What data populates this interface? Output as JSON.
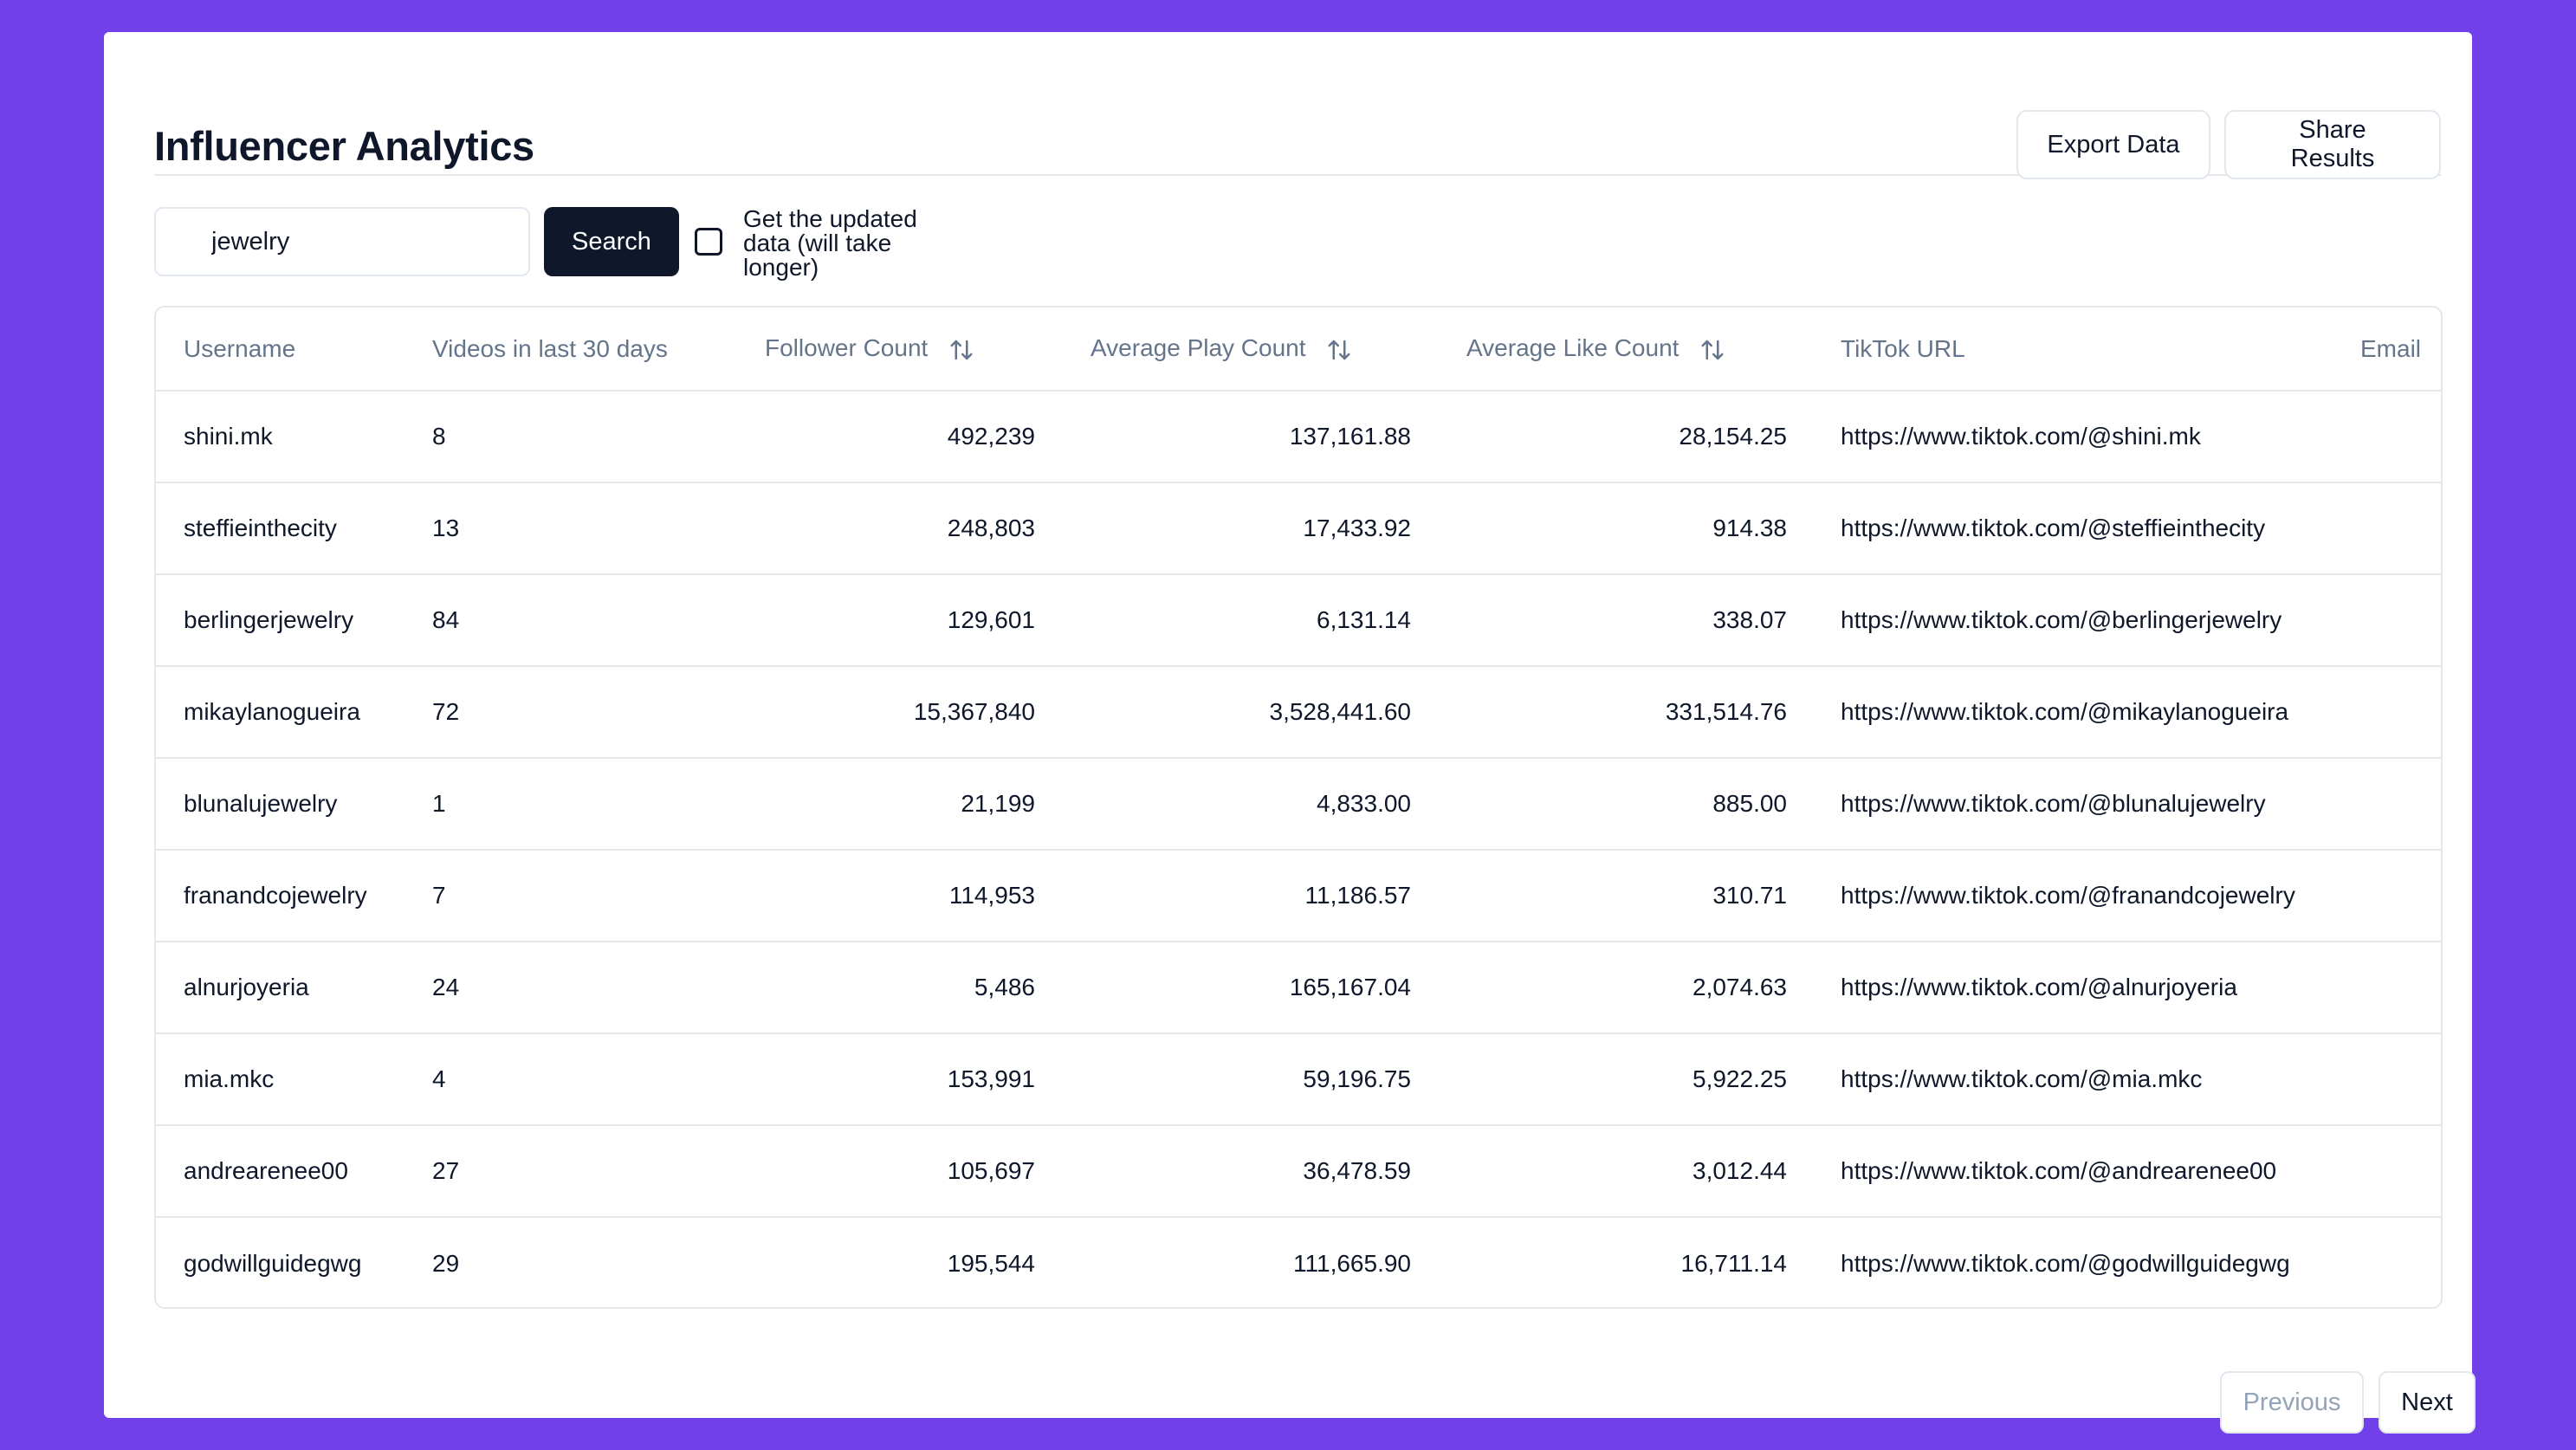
{
  "header": {
    "title": "Influencer Analytics",
    "export_label": "Export Data",
    "share_label": "Share Results"
  },
  "search": {
    "value": "jewelry",
    "button_label": "Search",
    "update_checkbox_checked": false,
    "update_label_line1": "Get the updated",
    "update_label_line2": "data (will take",
    "update_label_line3": "longer)"
  },
  "table": {
    "columns": {
      "username": "Username",
      "videos": "Videos in last 30 days",
      "followers": "Follower Count",
      "avg_play": "Average Play Count",
      "avg_like": "Average Like Count",
      "url": "TikTok URL",
      "email": "Email"
    },
    "rows": [
      {
        "username": "shini.mk",
        "videos": "8",
        "followers": "492,239",
        "avg_play": "137,161.88",
        "avg_like": "28,154.25",
        "url": "https://www.tiktok.com/@shini.mk",
        "email": ""
      },
      {
        "username": "steffieinthecity",
        "videos": "13",
        "followers": "248,803",
        "avg_play": "17,433.92",
        "avg_like": "914.38",
        "url": "https://www.tiktok.com/@steffieinthecity",
        "email": ""
      },
      {
        "username": "berlingerjewelry",
        "videos": "84",
        "followers": "129,601",
        "avg_play": "6,131.14",
        "avg_like": "338.07",
        "url": "https://www.tiktok.com/@berlingerjewelry",
        "email": ""
      },
      {
        "username": "mikaylanogueira",
        "videos": "72",
        "followers": "15,367,840",
        "avg_play": "3,528,441.60",
        "avg_like": "331,514.76",
        "url": "https://www.tiktok.com/@mikaylanogueira",
        "email": ""
      },
      {
        "username": "blunalujewelry",
        "videos": "1",
        "followers": "21,199",
        "avg_play": "4,833.00",
        "avg_like": "885.00",
        "url": "https://www.tiktok.com/@blunalujewelry",
        "email": ""
      },
      {
        "username": "franandcojewelry",
        "videos": "7",
        "followers": "114,953",
        "avg_play": "11,186.57",
        "avg_like": "310.71",
        "url": "https://www.tiktok.com/@franandcojewelry",
        "email": ""
      },
      {
        "username": "alnurjoyeria",
        "videos": "24",
        "followers": "5,486",
        "avg_play": "165,167.04",
        "avg_like": "2,074.63",
        "url": "https://www.tiktok.com/@alnurjoyeria",
        "email": ""
      },
      {
        "username": "mia.mkc",
        "videos": "4",
        "followers": "153,991",
        "avg_play": "59,196.75",
        "avg_like": "5,922.25",
        "url": "https://www.tiktok.com/@mia.mkc",
        "email": ""
      },
      {
        "username": "andrearenee00",
        "videos": "27",
        "followers": "105,697",
        "avg_play": "36,478.59",
        "avg_like": "3,012.44",
        "url": "https://www.tiktok.com/@andrearenee00",
        "email": ""
      },
      {
        "username": "godwillguidegwg",
        "videos": "29",
        "followers": "195,544",
        "avg_play": "111,665.90",
        "avg_like": "16,711.14",
        "url": "https://www.tiktok.com/@godwillguidegwg",
        "email": ""
      }
    ]
  },
  "pagination": {
    "previous_label": "Previous",
    "next_label": "Next",
    "previous_disabled": true
  },
  "icons": {
    "sort": "sort-arrows-icon"
  },
  "colors": {
    "background": "#7240e8",
    "primary_button": "#0f172a",
    "header_text": "#64748b"
  }
}
